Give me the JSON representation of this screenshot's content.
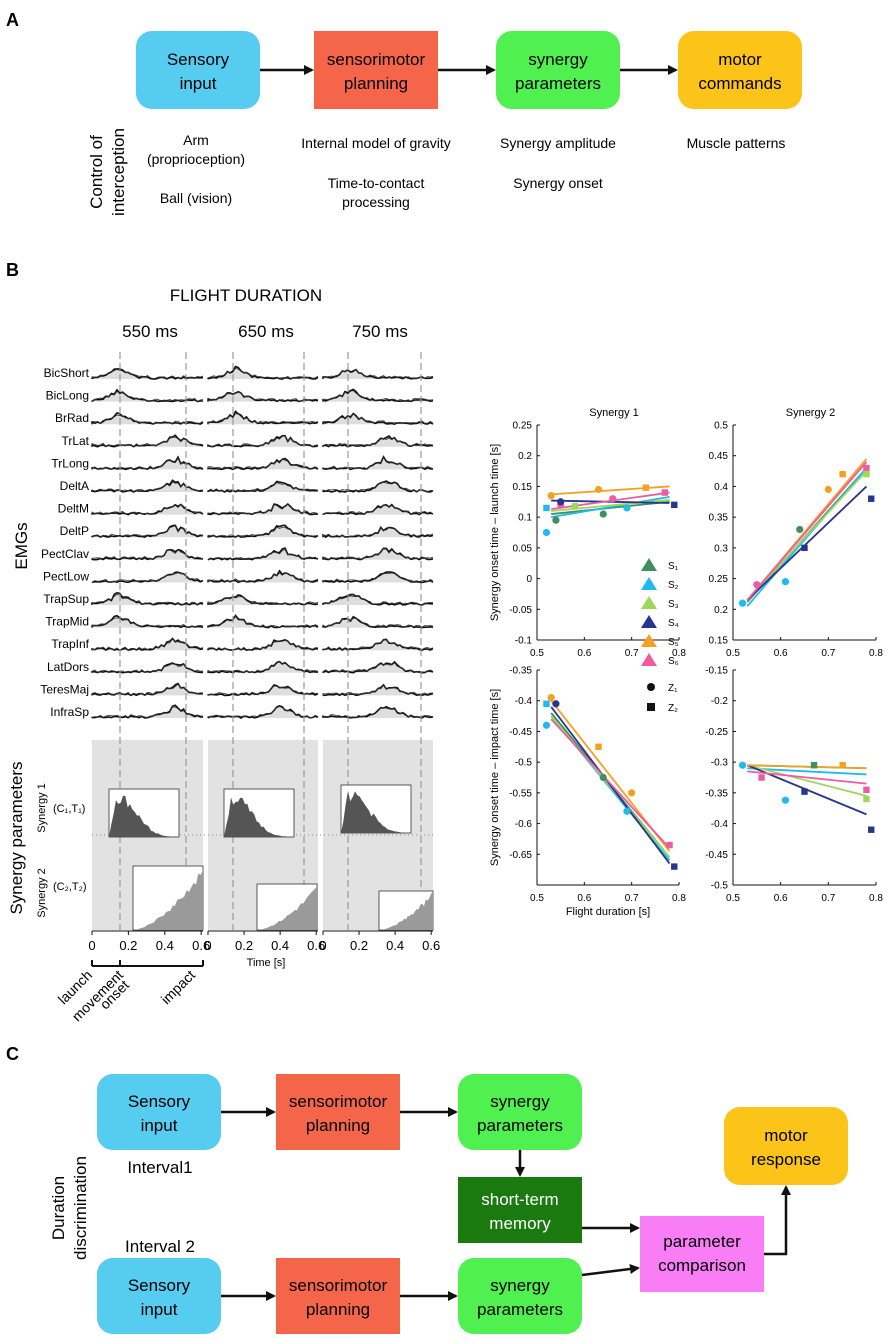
{
  "panel_A": {
    "letter": "A",
    "boxes": [
      {
        "line1": "Sensory",
        "line2": "input",
        "color": "#55ccf0"
      },
      {
        "line1": "sensorimotor",
        "line2": "planning",
        "color": "#f5654a"
      },
      {
        "line1": "synergy",
        "line2": "parameters",
        "color": "#50f050"
      },
      {
        "line1": "motor",
        "line2": "commands",
        "color": "#fcc419"
      }
    ],
    "side_label": [
      "Control of",
      "interception"
    ],
    "notes": {
      "arm": "Arm",
      "prop": "(proprioception)",
      "ball": "Ball  (vision)",
      "gravity": "Internal model of gravity",
      "ttc1": "Time-to-contact",
      "ttc2": "processing",
      "amp": "Synergy amplitude",
      "onset": "Synergy onset",
      "muscle": "Muscle patterns"
    }
  },
  "panel_B": {
    "letter": "B",
    "title": "FLIGHT DURATION",
    "durations": [
      "550 ms",
      "650 ms",
      "750 ms"
    ],
    "emg_label": "EMGs",
    "muscles": [
      "BicShort",
      "BicLong",
      "BrRad",
      "TrLat",
      "TrLong",
      "DeltA",
      "DeltM",
      "DeltP",
      "PectClav",
      "PectLow",
      "TrapSup",
      "TrapMid",
      "TrapInf",
      "LatDors",
      "TeresMaj",
      "InfraSp"
    ],
    "synergy_label": "Synergy  parameters",
    "syn1": "Synergy 1",
    "syn1_param": "(C₁,T₁)",
    "syn2": "Synergy 2",
    "syn2_param": "(C₂,T₂)",
    "time_ticks": [
      "0",
      "0.2",
      "0.4",
      "0.6"
    ],
    "time_label": "Time [s]",
    "events": [
      "launch",
      "movement",
      "onset",
      "impact"
    ],
    "legend": [
      {
        "label": "S₁",
        "color": "#3f8f5f"
      },
      {
        "label": "S₂",
        "color": "#22b8f0"
      },
      {
        "label": "S₃",
        "color": "#9ed85a"
      },
      {
        "label": "S₄",
        "color": "#26358f"
      },
      {
        "label": "S₅",
        "color": "#f7a020"
      },
      {
        "label": "S₆",
        "color": "#ee5ba0"
      }
    ],
    "markers": [
      {
        "label": "Z₁",
        "shape": "circle"
      },
      {
        "label": "Z₂",
        "shape": "square"
      }
    ]
  },
  "chart_data": [
    {
      "type": "scatter",
      "title": "Synergy 1",
      "ylabel": "Synergy onset time – launch time [s]",
      "xlim": [
        0.5,
        0.8
      ],
      "ylim": [
        -0.1,
        0.25
      ],
      "xticks": [
        "0.5",
        "0.6",
        "0.7",
        "0.8"
      ],
      "yticks": [
        "-0.1",
        "-0.05",
        "0",
        "0.05",
        "0.1",
        "0.15",
        "0.2",
        "0.25"
      ],
      "fit_lines": [
        {
          "series": "S1",
          "y0": 0.105,
          "y1": 0.125
        },
        {
          "series": "S2",
          "y0": 0.1,
          "y1": 0.133
        },
        {
          "series": "S3",
          "y0": 0.11,
          "y1": 0.128
        },
        {
          "series": "S4",
          "y0": 0.127,
          "y1": 0.123
        },
        {
          "series": "S5",
          "y0": 0.137,
          "y1": 0.15
        },
        {
          "series": "S6",
          "y0": 0.113,
          "y1": 0.14
        }
      ],
      "points": [
        {
          "s": 1,
          "x": 0.54,
          "y": 0.095,
          "m": "c"
        },
        {
          "s": 1,
          "x": 0.64,
          "y": 0.105,
          "m": "c"
        },
        {
          "s": 2,
          "x": 0.52,
          "y": 0.075,
          "m": "c"
        },
        {
          "s": 2,
          "x": 0.52,
          "y": 0.115,
          "m": "s"
        },
        {
          "s": 2,
          "x": 0.69,
          "y": 0.115,
          "m": "c"
        },
        {
          "s": 4,
          "x": 0.79,
          "y": 0.12,
          "m": "s"
        },
        {
          "s": 5,
          "x": 0.53,
          "y": 0.135,
          "m": "c"
        },
        {
          "s": 5,
          "x": 0.63,
          "y": 0.145,
          "m": "c"
        },
        {
          "s": 5,
          "x": 0.73,
          "y": 0.148,
          "m": "s"
        },
        {
          "s": 6,
          "x": 0.55,
          "y": 0.12,
          "m": "c"
        },
        {
          "s": 6,
          "x": 0.66,
          "y": 0.13,
          "m": "c"
        },
        {
          "s": 6,
          "x": 0.77,
          "y": 0.14,
          "m": "s"
        },
        {
          "s": 3,
          "x": 0.58,
          "y": 0.118,
          "m": "s"
        },
        {
          "s": 4,
          "x": 0.55,
          "y": 0.125,
          "m": "c"
        }
      ]
    },
    {
      "type": "scatter",
      "title": "Synergy 2",
      "xlim": [
        0.5,
        0.8
      ],
      "ylim": [
        0.15,
        0.5
      ],
      "xticks": [
        "0.5",
        "0.6",
        "0.7",
        "0.8"
      ],
      "yticks": [
        "0.15",
        "0.2",
        "0.25",
        "0.3",
        "0.35",
        "0.4",
        "0.45",
        "0.5"
      ],
      "fit_lines": [
        {
          "series": "S1",
          "y0": 0.212,
          "y1": 0.43
        },
        {
          "series": "S2",
          "y0": 0.205,
          "y1": 0.43
        },
        {
          "series": "S3",
          "y0": 0.215,
          "y1": 0.425
        },
        {
          "series": "S4",
          "y0": 0.215,
          "y1": 0.4
        },
        {
          "series": "S5",
          "y0": 0.215,
          "y1": 0.445
        },
        {
          "series": "S6",
          "y0": 0.215,
          "y1": 0.44
        }
      ],
      "points": [
        {
          "s": 2,
          "x": 0.52,
          "y": 0.21,
          "m": "c"
        },
        {
          "s": 2,
          "x": 0.61,
          "y": 0.245,
          "m": "c"
        },
        {
          "s": 4,
          "x": 0.79,
          "y": 0.38,
          "m": "s"
        },
        {
          "s": 4,
          "x": 0.65,
          "y": 0.3,
          "m": "s"
        },
        {
          "s": 5,
          "x": 0.73,
          "y": 0.42,
          "m": "s"
        },
        {
          "s": 5,
          "x": 0.7,
          "y": 0.395,
          "m": "c"
        },
        {
          "s": 6,
          "x": 0.78,
          "y": 0.43,
          "m": "s"
        },
        {
          "s": 3,
          "x": 0.78,
          "y": 0.42,
          "m": "s"
        },
        {
          "s": 1,
          "x": 0.64,
          "y": 0.33,
          "m": "c"
        },
        {
          "s": 6,
          "x": 0.55,
          "y": 0.24,
          "m": "c"
        }
      ]
    },
    {
      "type": "scatter",
      "ylabel": "Synergy onset time – impact time [s]",
      "xlabel": "Flight duration [s]",
      "xlim": [
        0.5,
        0.8
      ],
      "ylim": [
        -0.7,
        -0.35
      ],
      "xticks": [
        "0.5",
        "0.6",
        "0.7",
        "0.8"
      ],
      "yticks": [
        "-0.35",
        "-0.4",
        "-0.45",
        "-0.5",
        "-0.55",
        "-0.6",
        "-0.65"
      ],
      "fit_lines": [
        {
          "series": "S1",
          "y0": -0.42,
          "y1": -0.655
        },
        {
          "series": "S2",
          "y0": -0.425,
          "y1": -0.66
        },
        {
          "series": "S3",
          "y0": -0.425,
          "y1": -0.655
        },
        {
          "series": "S4",
          "y0": -0.41,
          "y1": -0.665
        },
        {
          "series": "S5",
          "y0": -0.4,
          "y1": -0.645
        },
        {
          "series": "S6",
          "y0": -0.43,
          "y1": -0.64
        }
      ],
      "points": [
        {
          "s": 5,
          "x": 0.53,
          "y": -0.395,
          "m": "c"
        },
        {
          "s": 5,
          "x": 0.63,
          "y": -0.475,
          "m": "s"
        },
        {
          "s": 5,
          "x": 0.7,
          "y": -0.55,
          "m": "c"
        },
        {
          "s": 2,
          "x": 0.52,
          "y": -0.44,
          "m": "c"
        },
        {
          "s": 2,
          "x": 0.52,
          "y": -0.405,
          "m": "s"
        },
        {
          "s": 1,
          "x": 0.64,
          "y": -0.525,
          "m": "c"
        },
        {
          "s": 4,
          "x": 0.79,
          "y": -0.67,
          "m": "s"
        },
        {
          "s": 6,
          "x": 0.78,
          "y": -0.635,
          "m": "s"
        },
        {
          "s": 4,
          "x": 0.54,
          "y": -0.405,
          "m": "c"
        },
        {
          "s": 2,
          "x": 0.69,
          "y": -0.58,
          "m": "c"
        }
      ]
    },
    {
      "type": "scatter",
      "xlabel": "",
      "xlim": [
        0.5,
        0.8
      ],
      "ylim": [
        -0.5,
        -0.15
      ],
      "xticks": [
        "0.5",
        "0.6",
        "0.7",
        "0.8"
      ],
      "yticks": [
        "-0.15",
        "-0.2",
        "-0.25",
        "-0.3",
        "-0.35",
        "-0.4",
        "-0.45",
        "-0.5"
      ],
      "fit_lines": [
        {
          "series": "S1",
          "y0": -0.305,
          "y1": -0.31
        },
        {
          "series": "S2",
          "y0": -0.31,
          "y1": -0.32
        },
        {
          "series": "S3",
          "y0": -0.305,
          "y1": -0.355
        },
        {
          "series": "S4",
          "y0": -0.305,
          "y1": -0.385
        },
        {
          "series": "S5",
          "y0": -0.305,
          "y1": -0.31
        },
        {
          "series": "S6",
          "y0": -0.315,
          "y1": -0.335
        }
      ],
      "points": [
        {
          "s": 2,
          "x": 0.52,
          "y": -0.305,
          "m": "c"
        },
        {
          "s": 2,
          "x": 0.61,
          "y": -0.362,
          "m": "c"
        },
        {
          "s": 4,
          "x": 0.79,
          "y": -0.41,
          "m": "s"
        },
        {
          "s": 3,
          "x": 0.78,
          "y": -0.36,
          "m": "s"
        },
        {
          "s": 6,
          "x": 0.78,
          "y": -0.345,
          "m": "s"
        },
        {
          "s": 4,
          "x": 0.65,
          "y": -0.348,
          "m": "s"
        },
        {
          "s": 1,
          "x": 0.67,
          "y": -0.305,
          "m": "s"
        },
        {
          "s": 5,
          "x": 0.73,
          "y": -0.305,
          "m": "s"
        },
        {
          "s": 6,
          "x": 0.56,
          "y": -0.325,
          "m": "s"
        }
      ]
    }
  ],
  "panel_C": {
    "letter": "C",
    "side_label": [
      "Duration",
      "discrimination"
    ],
    "interval1": "Interval1",
    "interval2": "Interval 2",
    "sensory": [
      "Sensory",
      "input"
    ],
    "planning": [
      "sensorimotor",
      "planning"
    ],
    "synergy": [
      "synergy",
      "parameters"
    ],
    "memory": [
      "short-term",
      "memory"
    ],
    "comparison": [
      "parameter",
      "comparison"
    ],
    "response": [
      "motor",
      "response"
    ],
    "colors": {
      "memory": "#1a7a10",
      "comparison": "#f97ef5"
    }
  }
}
